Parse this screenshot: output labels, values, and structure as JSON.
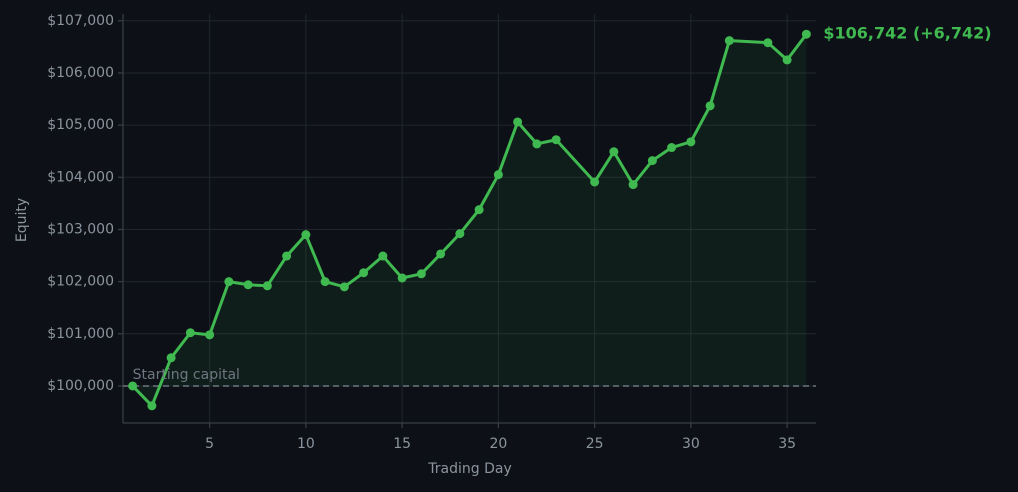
{
  "chart_data": {
    "type": "line",
    "x_label": "Trading Day",
    "y_label": "Equity",
    "x": [
      1,
      2,
      3,
      4,
      5,
      6,
      7,
      8,
      9,
      10,
      11,
      12,
      13,
      14,
      15,
      16,
      17,
      18,
      19,
      20,
      21,
      22,
      23,
      25,
      26,
      27,
      28,
      29,
      30,
      31,
      32,
      34,
      35,
      36
    ],
    "series": [
      {
        "name": "Equity",
        "color": "#3fb950",
        "values": [
          100000,
          99620,
          100540,
          101020,
          100980,
          102000,
          101940,
          101920,
          102490,
          102900,
          102000,
          101900,
          102170,
          102490,
          102070,
          102150,
          102530,
          102920,
          103380,
          104050,
          105060,
          104640,
          104720,
          103910,
          104490,
          103860,
          104320,
          104570,
          104680,
          105370,
          106620,
          106580,
          106250,
          106742
        ]
      }
    ],
    "annotation": "$106,742  (+6,742)",
    "baseline": 100000,
    "baseline_label": "Starting capital",
    "xlim": [
      0.5,
      36.5
    ],
    "xticks": [
      5,
      10,
      15,
      20,
      25,
      30,
      35
    ],
    "ylim": [
      99290,
      107130
    ],
    "yticks": [
      {
        "value": 100000,
        "label": "$100,000"
      },
      {
        "value": 101000,
        "label": "$101,000"
      },
      {
        "value": 102000,
        "label": "$102,000"
      },
      {
        "value": 103000,
        "label": "$103,000"
      },
      {
        "value": 104000,
        "label": "$104,000"
      },
      {
        "value": 105000,
        "label": "$105,000"
      },
      {
        "value": 106000,
        "label": "$106,000"
      },
      {
        "value": 107000,
        "label": "$107,000"
      }
    ],
    "grid": true
  }
}
